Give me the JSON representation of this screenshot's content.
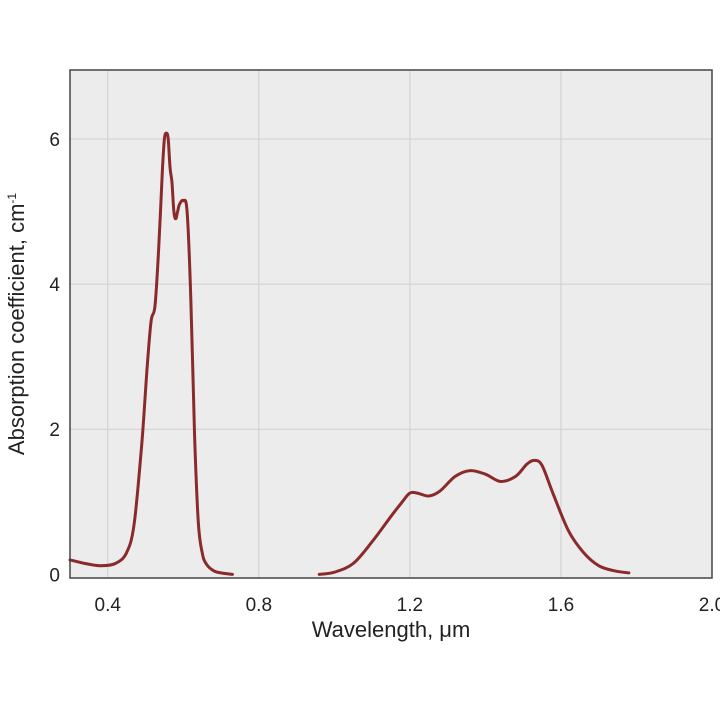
{
  "chart_data": {
    "type": "line",
    "title": "",
    "xlabel": "Wavelength, μm",
    "ylabel": "Absorption coefficient, cm",
    "ylabel_superscript": "-1",
    "xlim": [
      0.3,
      2.0
    ],
    "ylim": [
      -0.05,
      6.95
    ],
    "xticks": [
      0.4,
      0.8,
      1.2,
      1.6,
      2.0
    ],
    "xtick_labels": [
      "0.4",
      "0.8",
      "1.2",
      "1.6",
      "2.0"
    ],
    "yticks": [
      0,
      2,
      4,
      6
    ],
    "ytick_labels": [
      "0",
      "2",
      "4",
      "6"
    ],
    "grid": true,
    "legend": "none",
    "colors": {
      "series": "#8b2a2a",
      "plot_background": "#ececec",
      "grid": "#cfcfcf"
    },
    "series": [
      {
        "segment": 1,
        "x": [
          0.3,
          0.34,
          0.38,
          0.42,
          0.45,
          0.47,
          0.49,
          0.505,
          0.515,
          0.525,
          0.535,
          0.545,
          0.55,
          0.555,
          0.56,
          0.565,
          0.57,
          0.575,
          0.58,
          0.585,
          0.59,
          0.6,
          0.61,
          0.62,
          0.63,
          0.64,
          0.65,
          0.66,
          0.68,
          0.7,
          0.73
        ],
        "y": [
          0.2,
          0.15,
          0.12,
          0.15,
          0.3,
          0.7,
          1.8,
          2.9,
          3.5,
          3.7,
          4.5,
          5.6,
          6.0,
          6.08,
          6.0,
          5.6,
          5.4,
          5.0,
          4.9,
          5.0,
          5.1,
          5.15,
          5.0,
          3.8,
          1.9,
          0.7,
          0.3,
          0.15,
          0.05,
          0.02,
          0.0
        ]
      },
      {
        "segment": 2,
        "x": [
          0.96,
          1.0,
          1.05,
          1.1,
          1.15,
          1.18,
          1.2,
          1.22,
          1.25,
          1.28,
          1.32,
          1.36,
          1.4,
          1.44,
          1.48,
          1.51,
          1.53,
          1.55,
          1.58,
          1.62,
          1.66,
          1.7,
          1.74,
          1.78
        ],
        "y": [
          0.0,
          0.03,
          0.15,
          0.45,
          0.8,
          1.0,
          1.12,
          1.12,
          1.08,
          1.15,
          1.35,
          1.43,
          1.38,
          1.28,
          1.35,
          1.52,
          1.57,
          1.5,
          1.1,
          0.6,
          0.3,
          0.12,
          0.05,
          0.02
        ]
      }
    ]
  }
}
